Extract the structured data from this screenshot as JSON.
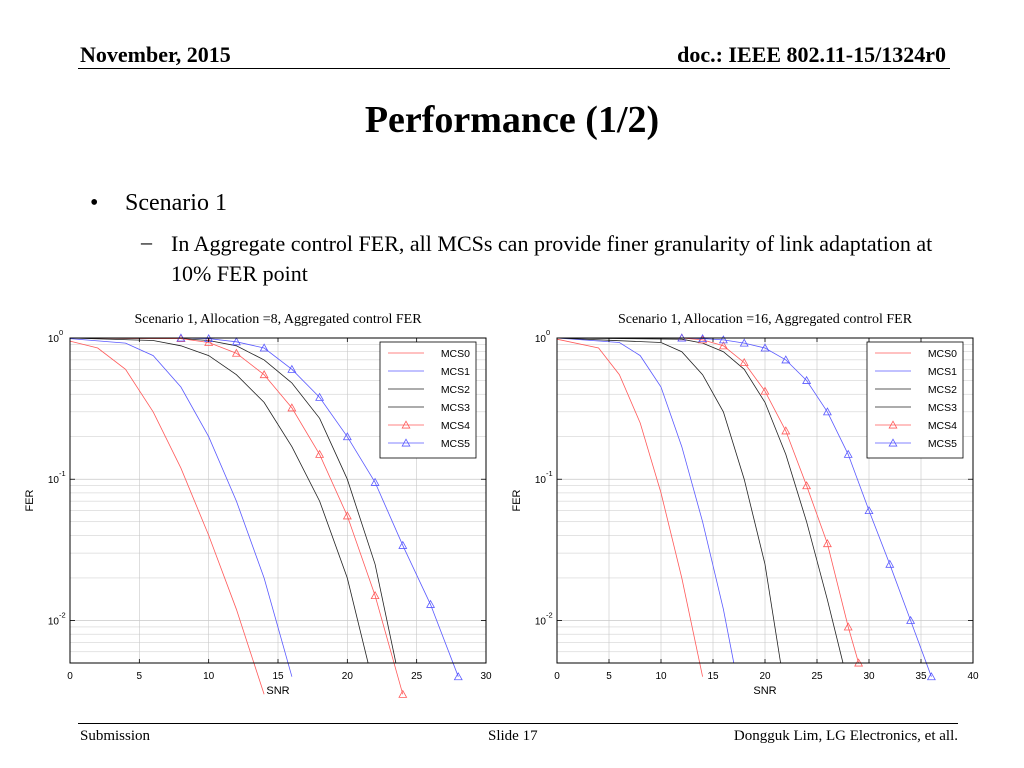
{
  "header": {
    "date": "November, 2015",
    "doc_id": "doc.: IEEE 802.11-15/1324r0"
  },
  "slide_title": "Performance (1/2)",
  "bullet": {
    "marker": "•",
    "text": "Scenario 1"
  },
  "sub_bullet": {
    "marker": "–",
    "text": "In Aggregate control FER, all MCSs can provide finer granularity of link adaptation at 10% FER point"
  },
  "footer": {
    "left": "Submission",
    "center": "Slide 17",
    "right": "Dongguk Lim, LG Electronics, et all."
  },
  "colors": {
    "red": "#ff5a5a",
    "blue": "#5a5aff",
    "black": "#222222",
    "grid": "#c8c8c8"
  },
  "chart_data": [
    {
      "type": "line",
      "title": "Scenario 1, Allocation =8, Aggregated control FER",
      "xlabel": "SNR",
      "ylabel": "FER",
      "xlim": [
        0,
        30
      ],
      "ylim": [
        0.005,
        1
      ],
      "yscale": "log",
      "xticks": [
        0,
        5,
        10,
        15,
        20,
        25,
        30
      ],
      "yticks": [
        {
          "base": "10",
          "exp": "0",
          "value": 1
        },
        {
          "base": "10",
          "exp": "-1",
          "value": 0.1
        },
        {
          "base": "10",
          "exp": "-2",
          "value": 0.01
        }
      ],
      "grid": true,
      "legend_position": "top-right",
      "series": [
        {
          "name": "MCS0",
          "color": "red",
          "marker": "none",
          "x": [
            0,
            2,
            4,
            6,
            8,
            10,
            12,
            14
          ],
          "y": [
            0.95,
            0.85,
            0.6,
            0.3,
            0.12,
            0.04,
            0.012,
            0.003
          ]
        },
        {
          "name": "MCS1",
          "color": "blue",
          "marker": "none",
          "x": [
            0,
            4,
            6,
            8,
            10,
            12,
            14,
            16
          ],
          "y": [
            0.99,
            0.92,
            0.75,
            0.45,
            0.2,
            0.07,
            0.02,
            0.004
          ]
        },
        {
          "name": "MCS2",
          "color": "black",
          "marker": "none",
          "x": [
            0,
            6,
            8,
            10,
            12,
            14,
            16,
            18,
            20,
            21.5
          ],
          "y": [
            1,
            0.96,
            0.88,
            0.75,
            0.55,
            0.35,
            0.17,
            0.07,
            0.02,
            0.005
          ]
        },
        {
          "name": "MCS3",
          "color": "black",
          "marker": "none",
          "x": [
            0,
            8,
            10,
            12,
            14,
            16,
            18,
            20,
            22,
            23.5
          ],
          "y": [
            1,
            0.99,
            0.96,
            0.88,
            0.7,
            0.48,
            0.27,
            0.1,
            0.025,
            0.005
          ]
        },
        {
          "name": "MCS4",
          "color": "red",
          "marker": "triangle",
          "x": [
            0,
            8,
            10,
            12,
            14,
            16,
            18,
            20,
            22,
            24
          ],
          "y": [
            1,
            0.99,
            0.93,
            0.78,
            0.55,
            0.32,
            0.15,
            0.055,
            0.015,
            0.003
          ]
        },
        {
          "name": "MCS5",
          "color": "blue",
          "marker": "triangle",
          "x": [
            0,
            8,
            10,
            12,
            14,
            16,
            18,
            20,
            22,
            24,
            26,
            28
          ],
          "y": [
            1,
            1,
            0.99,
            0.94,
            0.85,
            0.6,
            0.38,
            0.2,
            0.095,
            0.034,
            0.013,
            0.004
          ]
        }
      ]
    },
    {
      "type": "line",
      "title": "Scenario 1, Allocation =16, Aggregated control FER",
      "xlabel": "SNR",
      "ylabel": "FER",
      "xlim": [
        0,
        40
      ],
      "ylim": [
        0.005,
        1
      ],
      "yscale": "log",
      "xticks": [
        0,
        5,
        10,
        15,
        20,
        25,
        30,
        35,
        40
      ],
      "yticks": [
        {
          "base": "10",
          "exp": "0",
          "value": 1
        },
        {
          "base": "10",
          "exp": "-1",
          "value": 0.1
        },
        {
          "base": "10",
          "exp": "-2",
          "value": 0.01
        }
      ],
      "grid": true,
      "legend_position": "top-right",
      "series": [
        {
          "name": "MCS0",
          "color": "red",
          "marker": "none",
          "x": [
            0,
            4,
            6,
            8,
            10,
            12,
            14
          ],
          "y": [
            0.98,
            0.85,
            0.55,
            0.25,
            0.08,
            0.02,
            0.004
          ]
        },
        {
          "name": "MCS1",
          "color": "blue",
          "marker": "none",
          "x": [
            0,
            6,
            8,
            10,
            12,
            14,
            16,
            17
          ],
          "y": [
            1,
            0.93,
            0.75,
            0.45,
            0.17,
            0.05,
            0.012,
            0.005
          ]
        },
        {
          "name": "MCS2",
          "color": "black",
          "marker": "none",
          "x": [
            0,
            10,
            12,
            14,
            16,
            18,
            20,
            21.5
          ],
          "y": [
            1,
            0.93,
            0.8,
            0.55,
            0.3,
            0.1,
            0.025,
            0.005
          ]
        },
        {
          "name": "MCS3",
          "color": "black",
          "marker": "none",
          "x": [
            0,
            12,
            14,
            16,
            18,
            20,
            22,
            24,
            26,
            27.5
          ],
          "y": [
            1,
            0.98,
            0.92,
            0.8,
            0.6,
            0.35,
            0.15,
            0.05,
            0.014,
            0.005
          ]
        },
        {
          "name": "MCS4",
          "color": "red",
          "marker": "triangle",
          "x": [
            0,
            12,
            14,
            16,
            18,
            20,
            22,
            24,
            26,
            28,
            29
          ],
          "y": [
            1,
            1,
            0.97,
            0.88,
            0.67,
            0.42,
            0.22,
            0.09,
            0.035,
            0.009,
            0.005
          ]
        },
        {
          "name": "MCS5",
          "color": "blue",
          "marker": "triangle",
          "x": [
            0,
            12,
            14,
            16,
            18,
            20,
            22,
            24,
            26,
            28,
            30,
            32,
            34,
            36
          ],
          "y": [
            1,
            1,
            0.99,
            0.97,
            0.92,
            0.85,
            0.7,
            0.5,
            0.3,
            0.15,
            0.06,
            0.025,
            0.01,
            0.004
          ]
        }
      ]
    }
  ]
}
